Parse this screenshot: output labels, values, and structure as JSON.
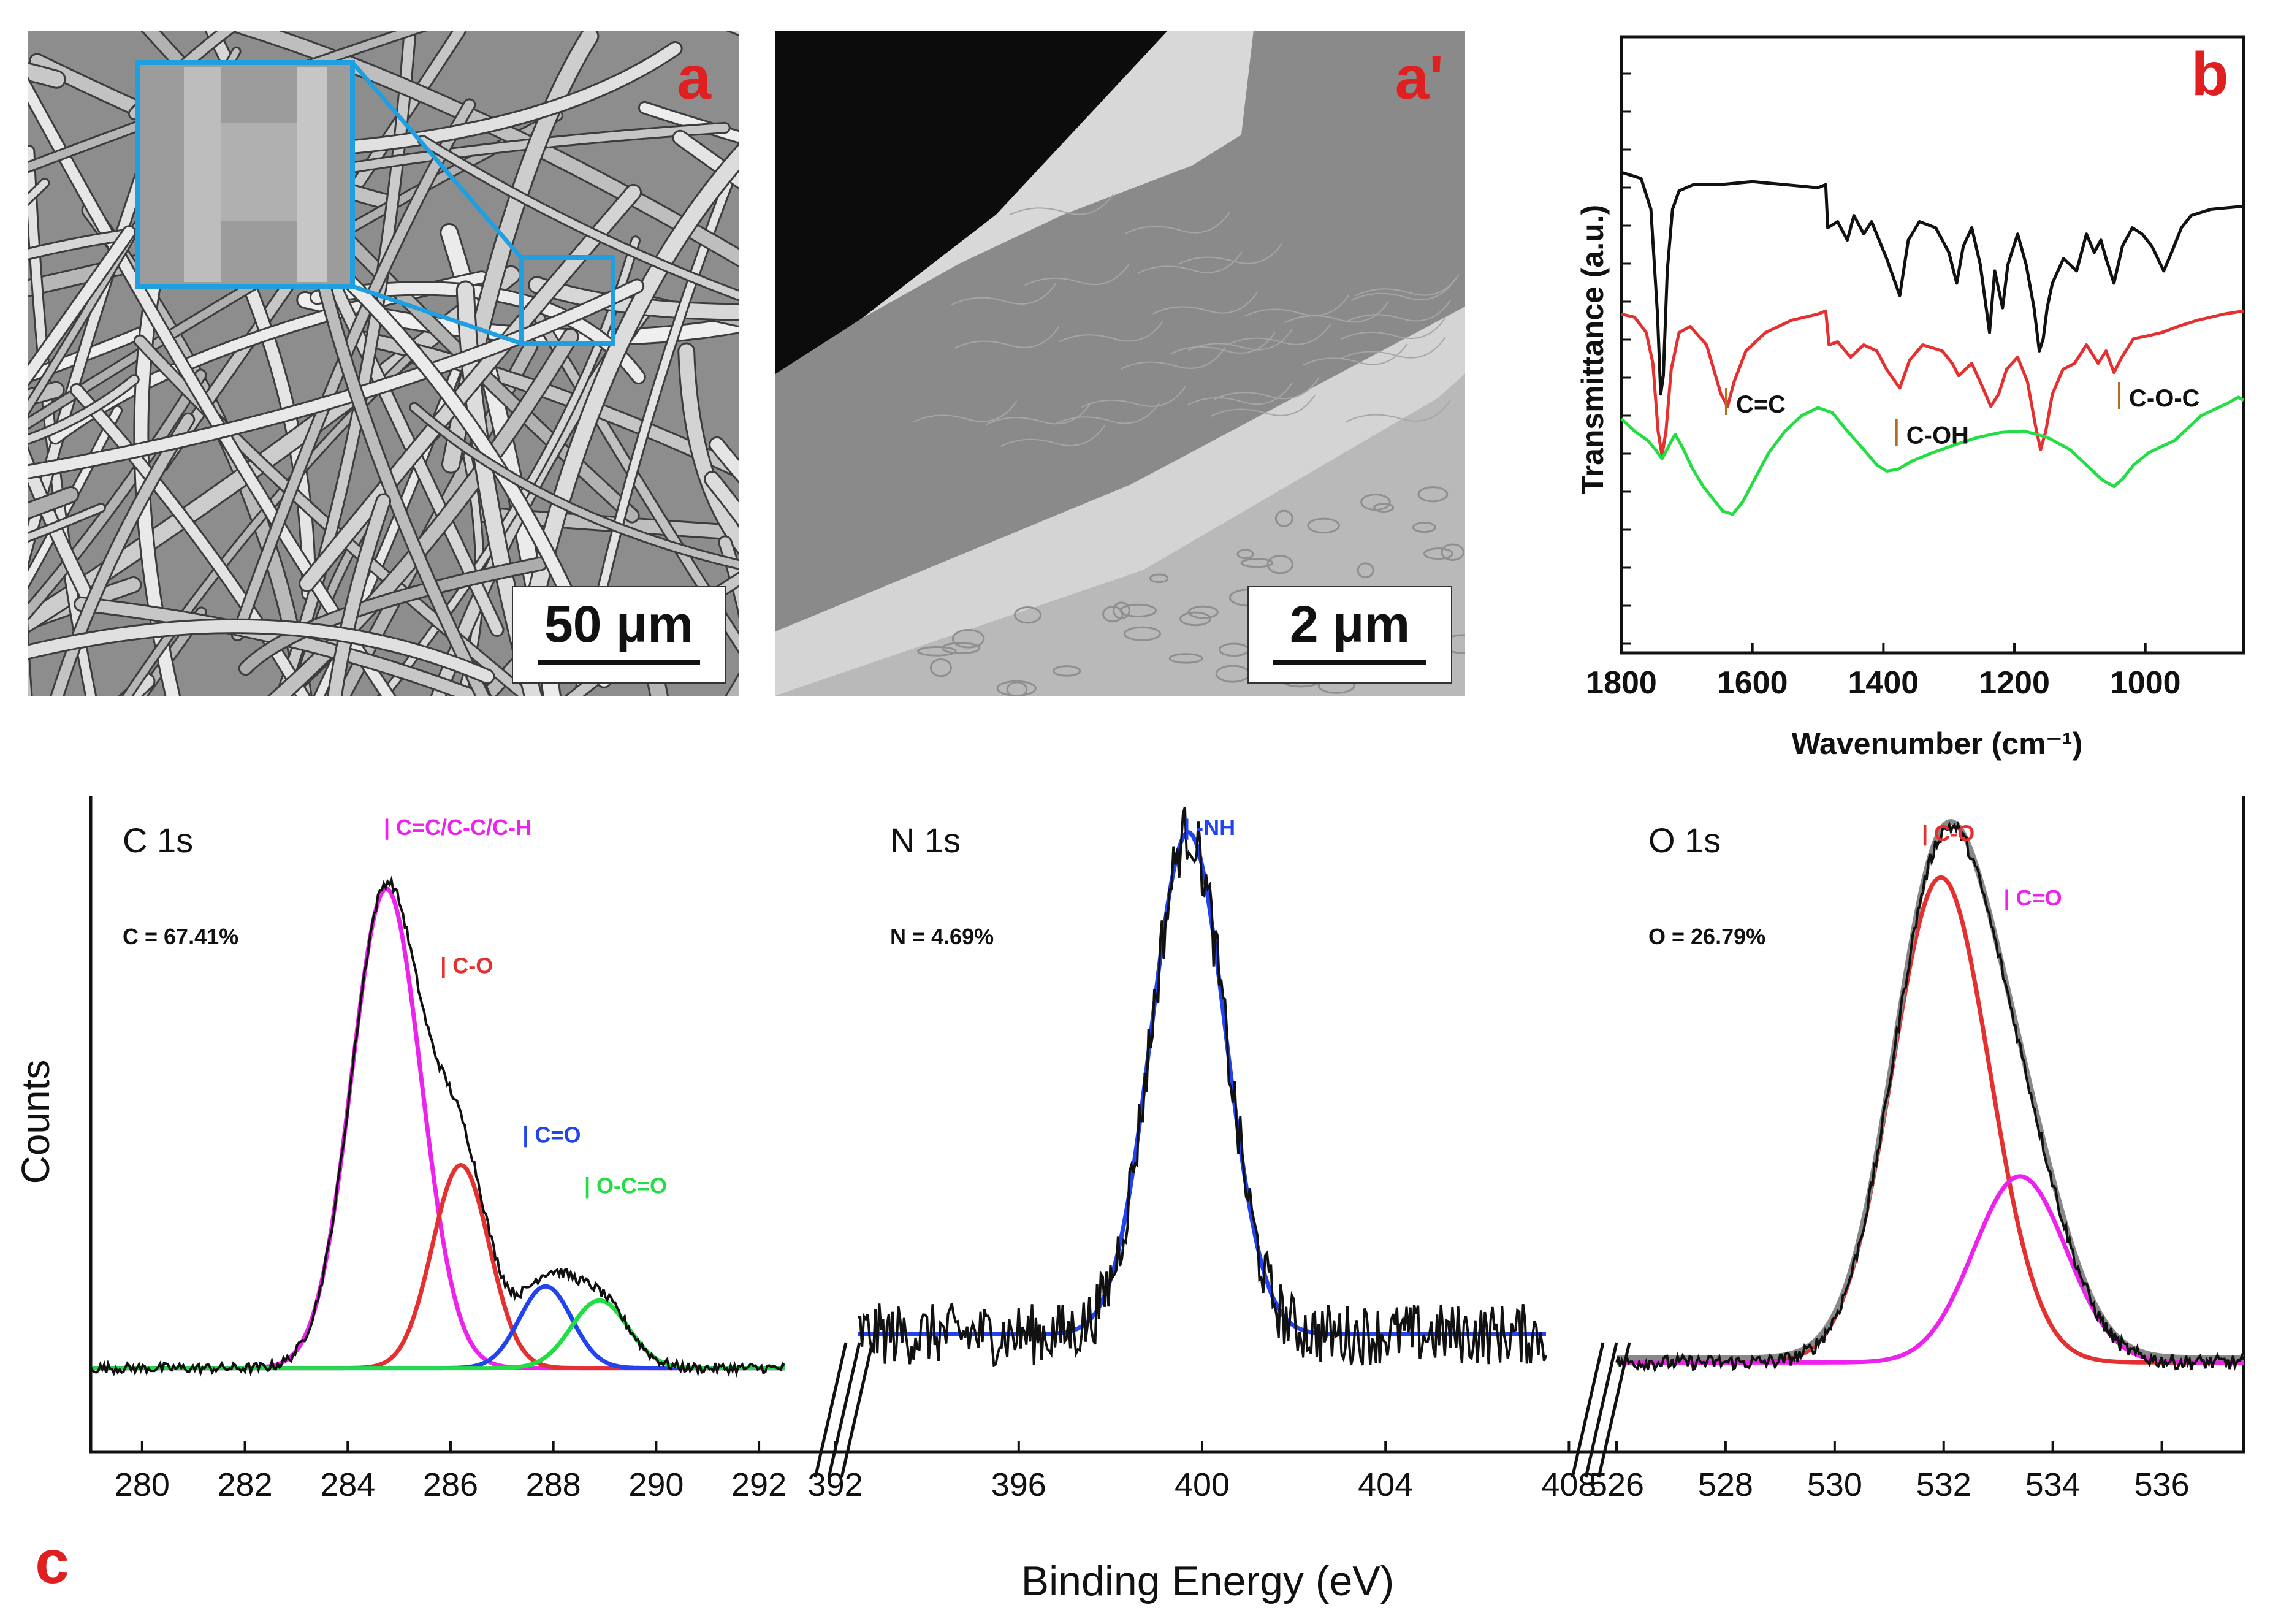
{
  "panels": {
    "a": {
      "letter": "a",
      "scale_label": "50 μm"
    },
    "a_prime": {
      "letter": "a'",
      "scale_label": "2 μm"
    },
    "b": {
      "letter": "b"
    },
    "c": {
      "letter": "c"
    }
  },
  "colors": {
    "panel_letter": "#e02020",
    "black": "#111111",
    "red": "#e53030",
    "green": "#22dd44",
    "magenta": "#ee22ee",
    "blue": "#2244ee",
    "gray": "#888888",
    "inset_frame": "#1f9fe0"
  },
  "chart_data": [
    {
      "id": "ftir",
      "type": "line",
      "title": "",
      "xlabel": "Wavenumber (cm⁻¹)",
      "ylabel": "Transmittance (a.u.)",
      "xlim": [
        1800,
        850
      ],
      "ylim": [
        0,
        10
      ],
      "x_ticks": [
        1800,
        1600,
        1400,
        1200,
        1000
      ],
      "annotations": [
        {
          "text": "C=C",
          "x": 1640,
          "y": 3.9
        },
        {
          "text": "C-OH",
          "x": 1380,
          "y": 3.4
        },
        {
          "text": "C-O-C",
          "x": 1040,
          "y": 4.0
        }
      ],
      "series": [
        {
          "name": "black",
          "color": "#111111",
          "points": [
            [
              1800,
              7.8
            ],
            [
              1770,
              7.7
            ],
            [
              1755,
              7.2
            ],
            [
              1745,
              5.5
            ],
            [
              1740,
              4.2
            ],
            [
              1736,
              4.5
            ],
            [
              1730,
              6.2
            ],
            [
              1722,
              7.2
            ],
            [
              1712,
              7.5
            ],
            [
              1690,
              7.6
            ],
            [
              1650,
              7.6
            ],
            [
              1600,
              7.65
            ],
            [
              1550,
              7.6
            ],
            [
              1500,
              7.55
            ],
            [
              1488,
              7.6
            ],
            [
              1485,
              6.9
            ],
            [
              1470,
              7.0
            ],
            [
              1455,
              6.7
            ],
            [
              1445,
              7.1
            ],
            [
              1430,
              6.8
            ],
            [
              1418,
              7.0
            ],
            [
              1395,
              6.4
            ],
            [
              1375,
              5.8
            ],
            [
              1362,
              6.7
            ],
            [
              1345,
              7.0
            ],
            [
              1320,
              6.9
            ],
            [
              1300,
              6.5
            ],
            [
              1288,
              6.0
            ],
            [
              1278,
              6.6
            ],
            [
              1265,
              6.9
            ],
            [
              1252,
              6.3
            ],
            [
              1238,
              5.2
            ],
            [
              1230,
              6.2
            ],
            [
              1218,
              5.6
            ],
            [
              1210,
              6.3
            ],
            [
              1195,
              6.8
            ],
            [
              1182,
              6.3
            ],
            [
              1170,
              5.6
            ],
            [
              1162,
              4.9
            ],
            [
              1156,
              5.1
            ],
            [
              1150,
              5.6
            ],
            [
              1142,
              6.0
            ],
            [
              1125,
              6.4
            ],
            [
              1105,
              6.2
            ],
            [
              1090,
              6.8
            ],
            [
              1078,
              6.5
            ],
            [
              1068,
              6.7
            ],
            [
              1060,
              6.4
            ],
            [
              1048,
              6.0
            ],
            [
              1035,
              6.6
            ],
            [
              1020,
              6.9
            ],
            [
              1005,
              6.8
            ],
            [
              990,
              6.6
            ],
            [
              972,
              6.2
            ],
            [
              960,
              6.5
            ],
            [
              945,
              6.9
            ],
            [
              930,
              7.1
            ],
            [
              900,
              7.2
            ],
            [
              850,
              7.25
            ]
          ]
        },
        {
          "name": "red",
          "color": "#e53030",
          "points": [
            [
              1800,
              5.5
            ],
            [
              1780,
              5.45
            ],
            [
              1762,
              5.2
            ],
            [
              1752,
              4.7
            ],
            [
              1744,
              3.6
            ],
            [
              1738,
              3.2
            ],
            [
              1732,
              3.6
            ],
            [
              1724,
              4.6
            ],
            [
              1712,
              5.2
            ],
            [
              1695,
              5.3
            ],
            [
              1670,
              5.0
            ],
            [
              1648,
              4.2
            ],
            [
              1638,
              4.0
            ],
            [
              1628,
              4.4
            ],
            [
              1610,
              4.9
            ],
            [
              1580,
              5.2
            ],
            [
              1540,
              5.4
            ],
            [
              1500,
              5.5
            ],
            [
              1488,
              5.55
            ],
            [
              1483,
              5.0
            ],
            [
              1470,
              5.05
            ],
            [
              1450,
              4.8
            ],
            [
              1430,
              5.0
            ],
            [
              1410,
              4.9
            ],
            [
              1395,
              4.6
            ],
            [
              1375,
              4.3
            ],
            [
              1360,
              4.75
            ],
            [
              1340,
              5.0
            ],
            [
              1310,
              4.9
            ],
            [
              1295,
              4.7
            ],
            [
              1285,
              4.5
            ],
            [
              1265,
              4.7
            ],
            [
              1248,
              4.3
            ],
            [
              1236,
              4.0
            ],
            [
              1224,
              4.2
            ],
            [
              1212,
              4.6
            ],
            [
              1195,
              4.8
            ],
            [
              1180,
              4.4
            ],
            [
              1168,
              3.7
            ],
            [
              1160,
              3.3
            ],
            [
              1152,
              3.6
            ],
            [
              1142,
              4.2
            ],
            [
              1126,
              4.6
            ],
            [
              1108,
              4.7
            ],
            [
              1090,
              5.0
            ],
            [
              1072,
              4.7
            ],
            [
              1060,
              4.9
            ],
            [
              1048,
              4.55
            ],
            [
              1036,
              4.8
            ],
            [
              1018,
              5.1
            ],
            [
              995,
              5.15
            ],
            [
              975,
              5.2
            ],
            [
              950,
              5.3
            ],
            [
              920,
              5.4
            ],
            [
              880,
              5.5
            ],
            [
              850,
              5.55
            ]
          ]
        },
        {
          "name": "green",
          "color": "#22dd44",
          "points": [
            [
              1800,
              3.8
            ],
            [
              1780,
              3.6
            ],
            [
              1760,
              3.45
            ],
            [
              1748,
              3.3
            ],
            [
              1738,
              3.15
            ],
            [
              1728,
              3.35
            ],
            [
              1718,
              3.55
            ],
            [
              1705,
              3.3
            ],
            [
              1692,
              3.0
            ],
            [
              1675,
              2.7
            ],
            [
              1660,
              2.5
            ],
            [
              1645,
              2.3
            ],
            [
              1630,
              2.25
            ],
            [
              1615,
              2.45
            ],
            [
              1595,
              2.85
            ],
            [
              1575,
              3.25
            ],
            [
              1550,
              3.6
            ],
            [
              1525,
              3.85
            ],
            [
              1500,
              3.98
            ],
            [
              1478,
              3.9
            ],
            [
              1455,
              3.6
            ],
            [
              1430,
              3.3
            ],
            [
              1410,
              3.05
            ],
            [
              1395,
              2.95
            ],
            [
              1378,
              2.98
            ],
            [
              1355,
              3.12
            ],
            [
              1325,
              3.25
            ],
            [
              1290,
              3.38
            ],
            [
              1255,
              3.5
            ],
            [
              1220,
              3.58
            ],
            [
              1185,
              3.6
            ],
            [
              1150,
              3.5
            ],
            [
              1115,
              3.3
            ],
            [
              1085,
              3.0
            ],
            [
              1065,
              2.8
            ],
            [
              1048,
              2.7
            ],
            [
              1035,
              2.82
            ],
            [
              1018,
              3.05
            ],
            [
              995,
              3.25
            ],
            [
              975,
              3.35
            ],
            [
              955,
              3.45
            ],
            [
              935,
              3.65
            ],
            [
              915,
              3.85
            ],
            [
              895,
              3.95
            ],
            [
              875,
              4.05
            ],
            [
              858,
              4.15
            ],
            [
              850,
              4.1
            ]
          ]
        }
      ]
    },
    {
      "id": "xps-c1s",
      "type": "line",
      "title": "C 1s",
      "annotation": "C = 67.41%",
      "xlim": [
        279,
        292.5
      ],
      "ylim": [
        0,
        100
      ],
      "x_ticks": [
        280,
        282,
        284,
        286,
        288,
        290,
        292
      ],
      "peak_labels": [
        {
          "text": "C=C/C-C/C-H",
          "x": 284.7,
          "y": 96.5,
          "color": "#ee22ee"
        },
        {
          "text": "C-O",
          "x": 285.8,
          "y": 72,
          "color": "#e53030"
        },
        {
          "text": "C=O",
          "x": 287.4,
          "y": 42,
          "color": "#2244ee"
        },
        {
          "text": "O-C=O",
          "x": 288.6,
          "y": 33,
          "color": "#22dd44"
        }
      ],
      "peaks": [
        {
          "name": "C=C/C-C/C-H",
          "center": 284.75,
          "height": 85,
          "fwhm": 1.6,
          "color": "#ee22ee"
        },
        {
          "name": "C-O",
          "center": 286.2,
          "height": 36,
          "fwhm": 1.3,
          "color": "#e53030"
        },
        {
          "name": "C=O",
          "center": 287.85,
          "height": 14.5,
          "fwhm": 1.2,
          "color": "#2244ee"
        },
        {
          "name": "O-C=O",
          "center": 288.9,
          "height": 12,
          "fwhm": 1.3,
          "color": "#22dd44"
        }
      ],
      "baseline": 2,
      "noise": 0.9
    },
    {
      "id": "xps-n1s",
      "type": "line",
      "title": "N 1s",
      "annotation": "N = 4.69%",
      "xlim": [
        392.5,
        407.5
      ],
      "ylim": [
        0,
        100
      ],
      "x_ticks": [
        392,
        396,
        400,
        404,
        408
      ],
      "peak_labels": [
        {
          "text": "-NH",
          "x": 399.6,
          "y": 96.5,
          "color": "#2244ee"
        }
      ],
      "peaks": [
        {
          "name": "-NH",
          "center": 399.7,
          "height": 89,
          "fwhm": 1.9,
          "color": "#2244ee"
        }
      ],
      "baseline": 8,
      "noise": 5.5
    },
    {
      "id": "xps-o1s",
      "type": "line",
      "title": "O 1s",
      "annotation": "O = 26.79%",
      "xlim": [
        526,
        537.5
      ],
      "ylim": [
        0,
        100
      ],
      "x_ticks": [
        526,
        528,
        530,
        532,
        534,
        536
      ],
      "peak_labels": [
        {
          "text": "C-O",
          "x": 531.6,
          "y": 95.5,
          "color": "#e53030"
        },
        {
          "text": "C=O",
          "x": 533.1,
          "y": 84,
          "color": "#ee22ee"
        }
      ],
      "peaks": [
        {
          "name": "C-O",
          "center": 531.95,
          "height": 86,
          "fwhm": 2.1,
          "color": "#e53030"
        },
        {
          "name": "C=O",
          "center": 533.4,
          "height": 33,
          "fwhm": 2.0,
          "color": "#ee22ee"
        }
      ],
      "baseline": 3,
      "noise": 1.3
    },
    {
      "id": "xps-shared-axes",
      "type": "line",
      "xlabel": "Binding Energy (eV)",
      "ylabel": "Counts"
    }
  ]
}
